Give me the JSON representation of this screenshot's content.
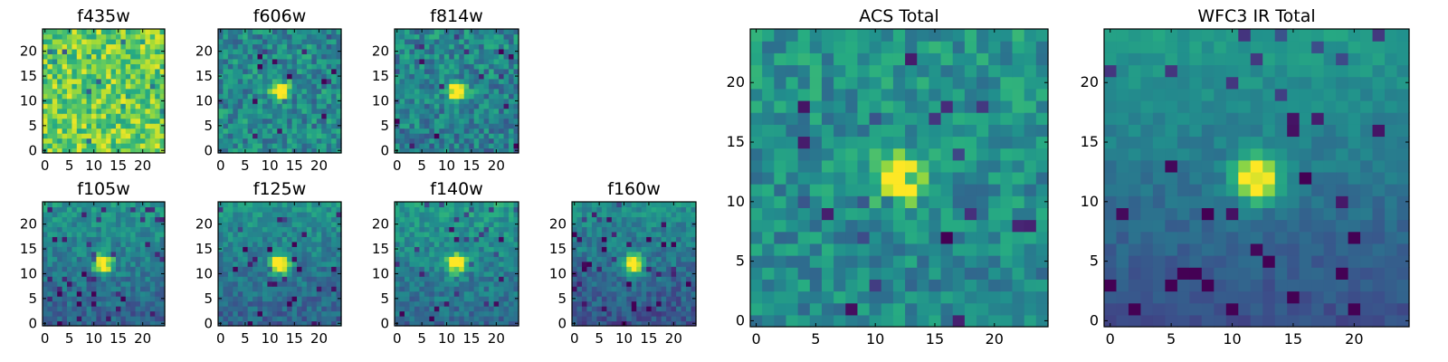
{
  "chart_data": [
    {
      "type": "heatmap",
      "title": "f435w",
      "grid_size": 25,
      "source_position": null,
      "background_level": 0.78,
      "noise_level": 0.2,
      "gradient": 0.0,
      "xticks": [
        "0",
        "5",
        "10",
        "15",
        "20"
      ],
      "yticks": [
        "0",
        "5",
        "10",
        "15",
        "20"
      ],
      "colormap": "viridis"
    },
    {
      "type": "heatmap",
      "title": "f606w",
      "grid_size": 25,
      "source_position": [
        12,
        12
      ],
      "background_level": 0.48,
      "noise_level": 0.18,
      "gradient": 0.0,
      "xticks": [
        "0",
        "5",
        "10",
        "15",
        "20"
      ],
      "yticks": [
        "0",
        "5",
        "10",
        "15",
        "20"
      ],
      "colormap": "viridis"
    },
    {
      "type": "heatmap",
      "title": "f814w",
      "grid_size": 25,
      "source_position": [
        12,
        12
      ],
      "background_level": 0.45,
      "noise_level": 0.18,
      "gradient": 0.05,
      "xticks": [
        "0",
        "5",
        "10",
        "15",
        "20"
      ],
      "yticks": [
        "0",
        "5",
        "10",
        "15",
        "20"
      ],
      "colormap": "viridis"
    },
    {
      "type": "heatmap",
      "title": "f105w",
      "grid_size": 25,
      "source_position": [
        12,
        12
      ],
      "background_level": 0.42,
      "noise_level": 0.12,
      "gradient": 0.22,
      "xticks": [
        "0",
        "5",
        "10",
        "15",
        "20"
      ],
      "yticks": [
        "0",
        "5",
        "10",
        "15",
        "20"
      ],
      "colormap": "viridis"
    },
    {
      "type": "heatmap",
      "title": "f125w",
      "grid_size": 25,
      "source_position": [
        12,
        12
      ],
      "background_level": 0.42,
      "noise_level": 0.12,
      "gradient": 0.22,
      "xticks": [
        "0",
        "5",
        "10",
        "15",
        "20"
      ],
      "yticks": [
        "0",
        "5",
        "10",
        "15",
        "20"
      ],
      "colormap": "viridis"
    },
    {
      "type": "heatmap",
      "title": "f140w",
      "grid_size": 25,
      "source_position": [
        12,
        12
      ],
      "background_level": 0.45,
      "noise_level": 0.12,
      "gradient": 0.22,
      "xticks": [
        "0",
        "5",
        "10",
        "15",
        "20"
      ],
      "yticks": [
        "0",
        "5",
        "10",
        "15",
        "20"
      ],
      "colormap": "viridis"
    },
    {
      "type": "heatmap",
      "title": "f160w",
      "grid_size": 25,
      "source_position": [
        12,
        12
      ],
      "background_level": 0.38,
      "noise_level": 0.12,
      "gradient": 0.25,
      "xticks": [
        "0",
        "5",
        "10",
        "15",
        "20"
      ],
      "yticks": [
        "0",
        "5",
        "10",
        "15",
        "20"
      ],
      "colormap": "viridis"
    },
    {
      "type": "heatmap",
      "title": "ACS Total",
      "grid_size": 25,
      "source_position": [
        12,
        12
      ],
      "background_level": 0.5,
      "noise_level": 0.15,
      "gradient": 0.05,
      "xticks": [
        "0",
        "5",
        "10",
        "15",
        "20"
      ],
      "yticks": [
        "0",
        "5",
        "10",
        "15",
        "20"
      ],
      "colormap": "viridis"
    },
    {
      "type": "heatmap",
      "title": "WFC3 IR Total",
      "grid_size": 25,
      "source_position": [
        12,
        12
      ],
      "background_level": 0.4,
      "noise_level": 0.06,
      "gradient": 0.3,
      "xticks": [
        "0",
        "5",
        "10",
        "15",
        "20"
      ],
      "yticks": [
        "0",
        "5",
        "10",
        "15",
        "20"
      ],
      "colormap": "viridis"
    }
  ]
}
